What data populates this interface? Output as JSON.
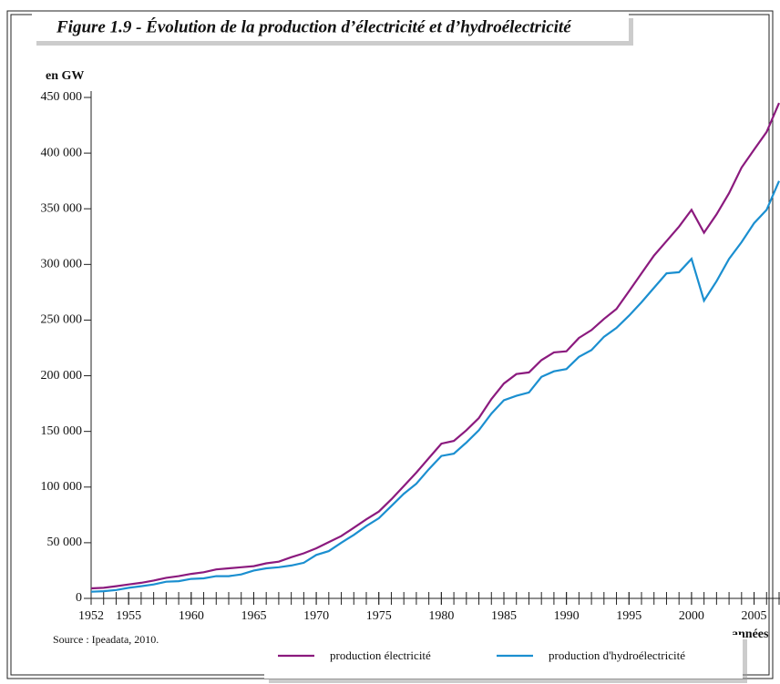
{
  "chart_data": {
    "type": "line",
    "title": "Figure 1.9 - Évolution de la production d’électricité et d’hydroélectricité",
    "y_label": "en GW",
    "x_label": "années",
    "source": "Source : Ipeadata, 2010.",
    "x": [
      1952,
      1953,
      1954,
      1955,
      1956,
      1957,
      1958,
      1959,
      1960,
      1961,
      1962,
      1963,
      1964,
      1965,
      1966,
      1967,
      1968,
      1969,
      1970,
      1971,
      1972,
      1973,
      1974,
      1975,
      1976,
      1977,
      1978,
      1979,
      1980,
      1981,
      1982,
      1983,
      1984,
      1985,
      1986,
      1987,
      1988,
      1989,
      1990,
      1991,
      1992,
      1993,
      1994,
      1995,
      1996,
      1997,
      1998,
      1999,
      2000,
      2001,
      2002,
      2003,
      2004,
      2005,
      2006,
      2007
    ],
    "series": [
      {
        "name": "production électricité",
        "color": "#8b1a7e",
        "values": [
          9000,
          9500,
          11000,
          12500,
          14000,
          16000,
          18500,
          20000,
          22000,
          23500,
          26000,
          27000,
          28000,
          29000,
          31500,
          33000,
          37000,
          40500,
          45000,
          50500,
          56000,
          63500,
          71000,
          78000,
          89000,
          101000,
          113000,
          126000,
          139000,
          141500,
          151000,
          162000,
          179000,
          193000,
          201500,
          203000,
          214000,
          221000,
          222000,
          234000,
          241000,
          251000,
          260000,
          276000,
          292000,
          308000,
          321000,
          334000,
          349000,
          328500,
          345000,
          364000,
          387000,
          403000,
          419000,
          445000
        ]
      },
      {
        "name": "production d'hydroélectricité",
        "color": "#1b8fd0",
        "values": [
          6000,
          6500,
          7500,
          9500,
          11000,
          12500,
          15000,
          15500,
          17500,
          18000,
          20000,
          20000,
          21500,
          25000,
          27000,
          28000,
          29500,
          32000,
          39000,
          42500,
          50000,
          57000,
          65000,
          72000,
          83000,
          94000,
          103000,
          116000,
          128000,
          130000,
          140000,
          151000,
          166000,
          178000,
          182000,
          185000,
          199000,
          204000,
          206000,
          217000,
          223000,
          235000,
          243000,
          254000,
          266000,
          279000,
          292000,
          293000,
          305000,
          267500,
          285000,
          305000,
          320000,
          337000,
          349000,
          375000
        ]
      }
    ],
    "xlim": [
      1952,
      2007
    ],
    "xticks": [
      1952,
      1955,
      1960,
      1965,
      1970,
      1975,
      1980,
      1985,
      1990,
      1995,
      2000,
      2005
    ],
    "ylim": [
      0,
      450000
    ],
    "yticks": [
      0,
      {
        "value": 50000,
        "label": "50 000"
      },
      {
        "value": 100000,
        "label": "100 000"
      },
      {
        "value": 150000,
        "label": "150 000"
      },
      {
        "value": 200000,
        "label": "200 000"
      },
      {
        "value": 250000,
        "label": "250 000"
      },
      {
        "value": 300000,
        "label": "300 000"
      },
      {
        "value": 350000,
        "label": "350 000"
      },
      {
        "value": 400000,
        "label": "400 000"
      },
      {
        "value": 450000,
        "label": "450 000"
      }
    ],
    "grid": false
  }
}
